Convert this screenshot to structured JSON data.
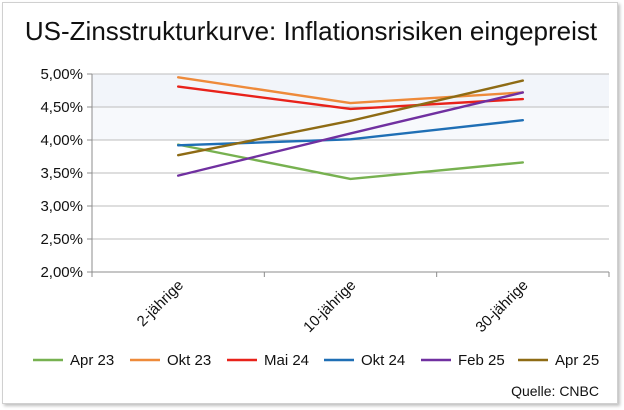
{
  "chart_data": {
    "type": "line",
    "title": "US-Zinsstrukturkurve: Inflationsrisiken eingepreist",
    "categories": [
      "2-jährige",
      "10-jährige",
      "30-jährige"
    ],
    "y_ticks": [
      "5,00%",
      "4,50%",
      "4,00%",
      "3,50%",
      "3,00%",
      "2,50%",
      "2,00%"
    ],
    "ylim": [
      2.0,
      5.0
    ],
    "ystep": 0.5,
    "grid": true,
    "legend_position": "bottom",
    "source": "Quelle: CNBC",
    "series": [
      {
        "name": "Apr 23",
        "color": "#77b150",
        "values": [
          3.93,
          3.41,
          3.66
        ]
      },
      {
        "name": "Okt 23",
        "color": "#ee8a3a",
        "values": [
          4.95,
          4.56,
          4.72
        ]
      },
      {
        "name": "Mai 24",
        "color": "#e8221a",
        "values": [
          4.81,
          4.47,
          4.62
        ]
      },
      {
        "name": "Okt 24",
        "color": "#1f6fb5",
        "values": [
          3.92,
          4.01,
          4.3
        ]
      },
      {
        "name": "Feb 25",
        "color": "#7030a0",
        "values": [
          3.46,
          4.1,
          4.72
        ]
      },
      {
        "name": "Apr 25",
        "color": "#8e6b14",
        "values": [
          3.77,
          4.29,
          4.9
        ]
      }
    ]
  }
}
